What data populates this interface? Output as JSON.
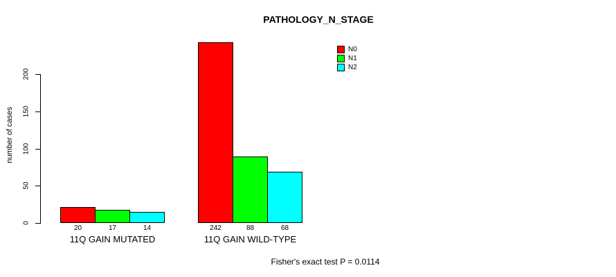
{
  "chart_data": {
    "type": "bar",
    "title": "PATHOLOGY_N_STAGE",
    "xlabel": "",
    "ylabel": "number of cases",
    "categories": [
      "11Q GAIN MUTATED",
      "11Q GAIN WILD-TYPE"
    ],
    "series": [
      {
        "name": "N0",
        "color": "#FF0000",
        "values": [
          20,
          242
        ]
      },
      {
        "name": "N1",
        "color": "#00FF00",
        "values": [
          17,
          88
        ]
      },
      {
        "name": "N2",
        "color": "#00FFFF",
        "values": [
          14,
          68
        ]
      }
    ],
    "bar_value_labels": [
      [
        "20",
        "17",
        "14"
      ],
      [
        "242",
        "88",
        "68"
      ]
    ],
    "yticks": [
      0,
      50,
      100,
      150,
      200
    ],
    "ylim": [
      0,
      250
    ],
    "grid": false,
    "legend": {
      "position": "inside-top-right",
      "entries": [
        "N0",
        "N1",
        "N2"
      ]
    },
    "annotation": "Fisher's exact test P = 0.0114",
    "axis_color": "#000000",
    "background_color": "#FFFFFF"
  }
}
